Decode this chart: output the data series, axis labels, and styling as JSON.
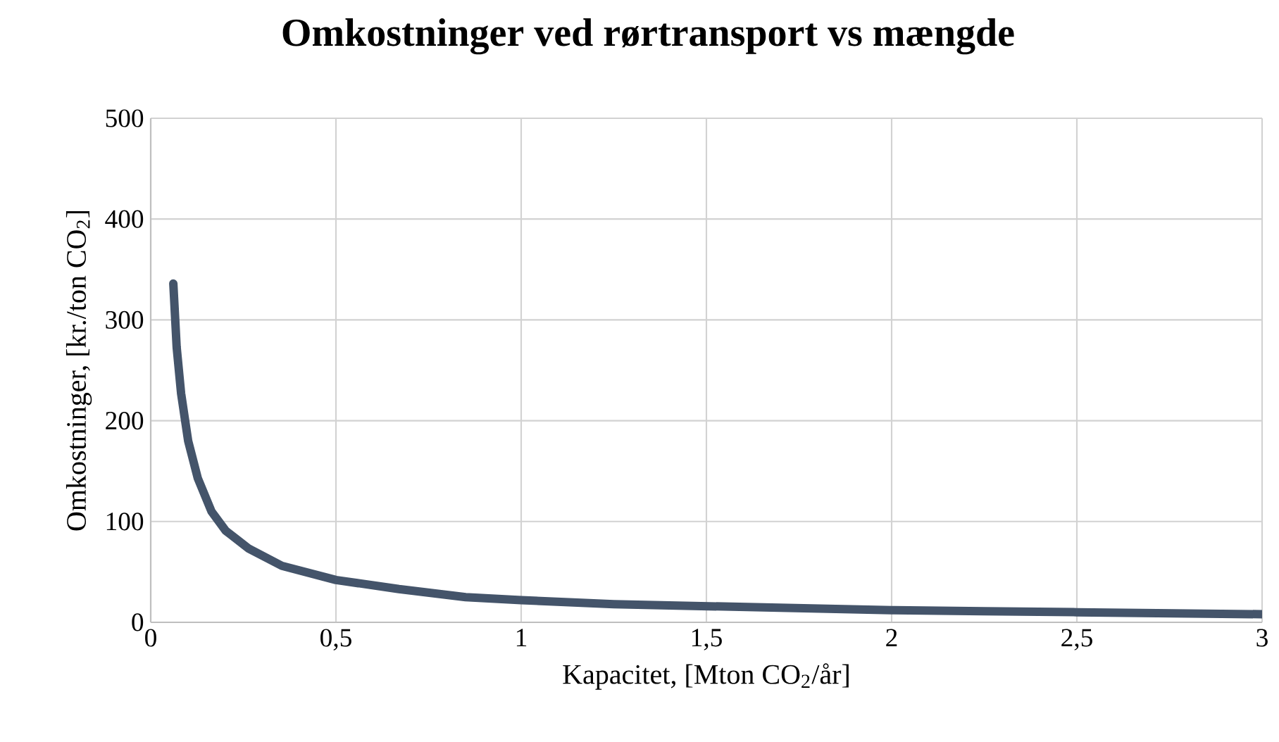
{
  "chart_data": {
    "type": "line",
    "title": "Omkostninger ved rørtransport vs mængde",
    "xlabel": "Kapacitet, [Mton CO$_{2}$/år]",
    "ylabel": "Omkostninger, [kr./ton CO$_{2}$]",
    "x": [
      0.061,
      0.07,
      0.082,
      0.101,
      0.127,
      0.164,
      0.202,
      0.265,
      0.354,
      0.5,
      0.67,
      0.85,
      1,
      1.25,
      1.5,
      1.75,
      2,
      2.25,
      2.5,
      2.75,
      3
    ],
    "series": [
      {
        "color": "#44546a",
        "values": [
          336,
          273,
          227,
          180,
          143,
          110,
          91,
          73,
          56,
          42,
          33,
          25,
          22,
          18,
          16,
          14,
          12,
          11,
          10,
          9,
          8
        ]
      }
    ],
    "xlim": [
      0,
      3
    ],
    "ylim": [
      0,
      500
    ],
    "xticks": [
      0,
      {
        "value": 0.5,
        "label": "0,5"
      },
      1,
      {
        "value": 1.5,
        "label": "1,5"
      },
      2,
      {
        "value": 2.5,
        "label": "2,5"
      },
      3
    ],
    "yticks": [
      0,
      100,
      200,
      300,
      400,
      500
    ],
    "grid": true,
    "marker": "none",
    "line_style": "solid"
  }
}
